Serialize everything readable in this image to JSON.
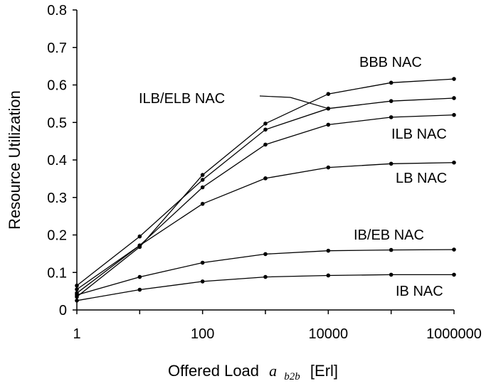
{
  "chart_data": {
    "type": "line",
    "title": "",
    "xlabel": "Offered Load",
    "xlabel_symbol": "a",
    "xlabel_subscript": "b2b",
    "xlabel_unit": "[Erl]",
    "ylabel": "Resource Utilization",
    "xscale": "log",
    "xlim": [
      1,
      1000000
    ],
    "ylim": [
      0,
      0.8
    ],
    "xticks": [
      "1",
      "100",
      "10000",
      "1000000"
    ],
    "yticks": [
      "0",
      "0.1",
      "0.2",
      "0.3",
      "0.4",
      "0.5",
      "0.6",
      "0.7",
      "0.8"
    ],
    "grid": false,
    "legend": "labels placed beside curves",
    "x": [
      1,
      10,
      100,
      1000,
      10000,
      100000,
      1000000
    ],
    "series": [
      {
        "name": "BBB NAC",
        "values": [
          0.035,
          0.168,
          0.36,
          0.497,
          0.576,
          0.606,
          0.616
        ]
      },
      {
        "name": "ILB/ELB NAC",
        "values": [
          0.065,
          0.196,
          0.347,
          0.481,
          0.537,
          0.557,
          0.565
        ]
      },
      {
        "name": "ILB NAC",
        "values": [
          0.055,
          0.172,
          0.327,
          0.441,
          0.494,
          0.514,
          0.52
        ]
      },
      {
        "name": "LB NAC",
        "values": [
          0.045,
          0.172,
          0.283,
          0.351,
          0.38,
          0.39,
          0.393
        ]
      },
      {
        "name": "IB/EB NAC",
        "values": [
          0.04,
          0.088,
          0.126,
          0.149,
          0.158,
          0.16,
          0.161
        ]
      },
      {
        "name": "IB NAC",
        "values": [
          0.025,
          0.054,
          0.076,
          0.088,
          0.092,
          0.094,
          0.094
        ]
      }
    ]
  }
}
